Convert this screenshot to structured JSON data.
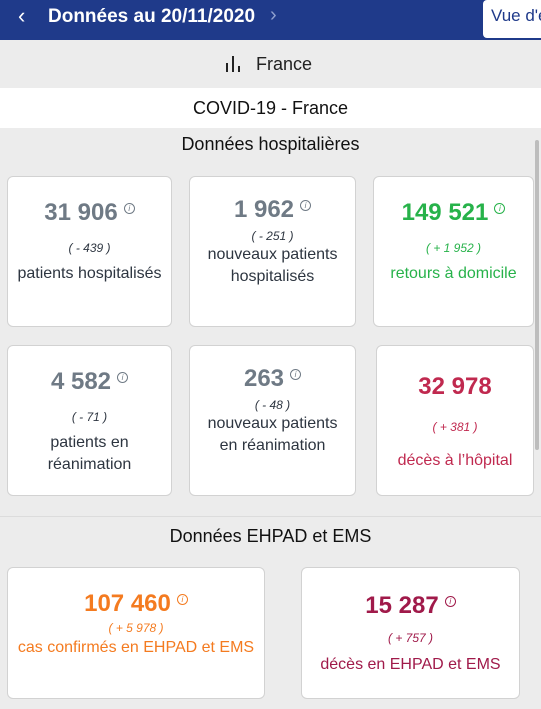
{
  "header": {
    "prev_icon": "chevron-left-icon",
    "date_label": "Données au 20/11/2020",
    "next_icon": "chevron-right-icon",
    "view_button": "Vue d'e"
  },
  "region": {
    "icon": "bar-chart-icon",
    "label": "France"
  },
  "page_title": "COVID-19 - France",
  "hospital": {
    "title": "Données hospitalières",
    "cards": [
      {
        "value": "31 906",
        "delta": "( - 439 )",
        "label": "patients hospitalisés",
        "color": "#6f7a85"
      },
      {
        "value": "1 962",
        "delta": "( - 251 )",
        "label": "nouveaux patients hospitalisés",
        "color": "#6f7a85"
      },
      {
        "value": "149 521",
        "delta": "( + 1 952 )",
        "label": "retours à domicile",
        "color": "#27b24a"
      },
      {
        "value": "4 582",
        "delta": "( - 71 )",
        "label": "patients en réanimation",
        "color": "#6f7a85"
      },
      {
        "value": "263",
        "delta": "( - 48 )",
        "label": "nouveaux patients en réanimation",
        "color": "#6f7a85"
      },
      {
        "value": "32 978",
        "delta": "( + 381 )",
        "label": "décès à l’hôpital",
        "color": "#c0294f"
      }
    ]
  },
  "ehpad": {
    "title": "Données EHPAD et EMS",
    "cards": [
      {
        "value": "107 460",
        "delta": "( + 5 978 )",
        "label": "cas confirmés en EHPAD et EMS",
        "color": "#f47b20"
      },
      {
        "value": "15 287",
        "delta": "( + 757 )",
        "label": "décès en EHPAD et EMS",
        "color": "#a01a4a"
      }
    ]
  },
  "info_icon": "info-circle-icon"
}
